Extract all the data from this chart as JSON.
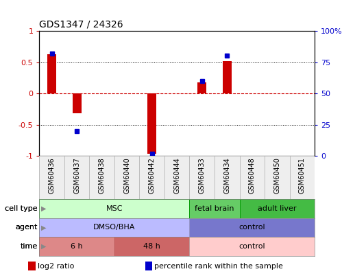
{
  "title": "GDS1347 / 24326",
  "samples": [
    "GSM60436",
    "GSM60437",
    "GSM60438",
    "GSM60440",
    "GSM60442",
    "GSM60444",
    "GSM60433",
    "GSM60434",
    "GSM60448",
    "GSM60450",
    "GSM60451"
  ],
  "log2_ratio": [
    0.63,
    -0.32,
    0.0,
    0.0,
    -0.97,
    0.0,
    0.18,
    0.52,
    0.0,
    0.0,
    0.0
  ],
  "percentile_rank": [
    82,
    20,
    null,
    null,
    2,
    null,
    60,
    80,
    null,
    null,
    null
  ],
  "bar_color": "#cc0000",
  "dot_color": "#0000cc",
  "cell_type_groups": [
    {
      "label": "MSC",
      "start": 0,
      "end": 5,
      "color": "#ccffcc",
      "border_color": "#009900"
    },
    {
      "label": "fetal brain",
      "start": 6,
      "end": 7,
      "color": "#66cc66",
      "border_color": "#009900"
    },
    {
      "label": "adult liver",
      "start": 8,
      "end": 10,
      "color": "#44bb44",
      "border_color": "#009900"
    }
  ],
  "agent_groups": [
    {
      "label": "DMSO/BHA",
      "start": 0,
      "end": 5,
      "color": "#bbbbff",
      "border_color": "#9999cc"
    },
    {
      "label": "control",
      "start": 6,
      "end": 10,
      "color": "#7777cc",
      "border_color": "#9999cc"
    }
  ],
  "time_groups": [
    {
      "label": "6 h",
      "start": 0,
      "end": 2,
      "color": "#dd8888",
      "border_color": "#bb5555"
    },
    {
      "label": "48 h",
      "start": 3,
      "end": 5,
      "color": "#cc6666",
      "border_color": "#bb5555"
    },
    {
      "label": "control",
      "start": 6,
      "end": 10,
      "color": "#ffcccc",
      "border_color": "#bb9999"
    }
  ],
  "legend_items": [
    {
      "color": "#cc0000",
      "label": "log2 ratio"
    },
    {
      "color": "#0000cc",
      "label": "percentile rank within the sample"
    }
  ]
}
